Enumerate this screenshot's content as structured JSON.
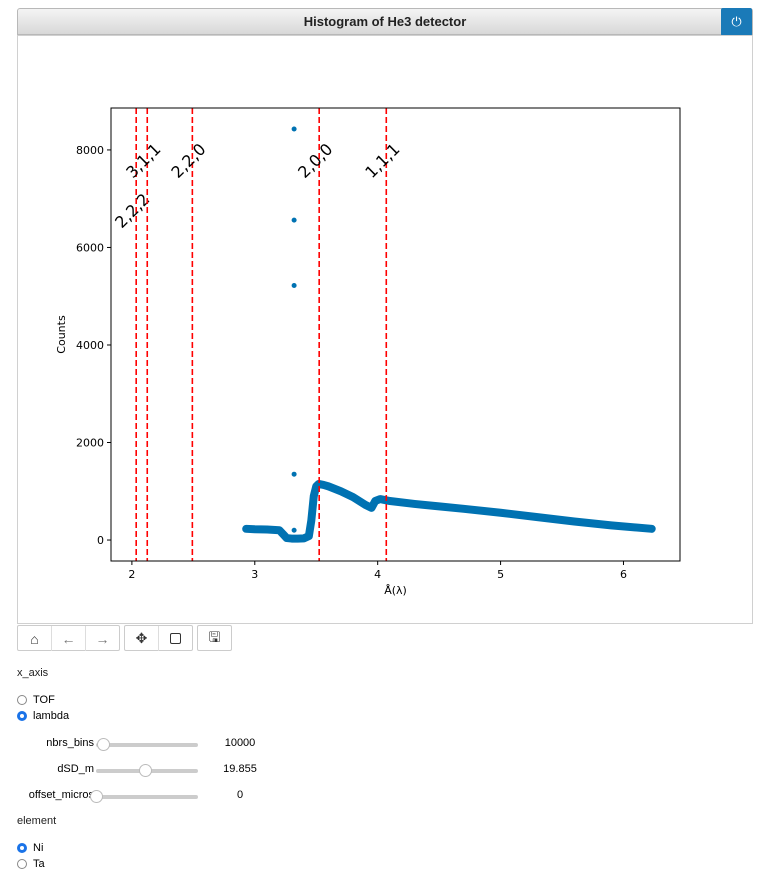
{
  "header": {
    "title": "Histogram of He3 detector",
    "power_icon": "power-icon",
    "power_color": "#1a7ab8"
  },
  "toolbar": {
    "buttons": [
      "home-icon",
      "arrow-left-icon",
      "arrow-right-icon",
      "move-icon",
      "square-icon",
      "save-icon"
    ]
  },
  "controls": {
    "x_axis": {
      "label": "x_axis",
      "options": [
        {
          "label": "TOF",
          "checked": false
        },
        {
          "label": "lambda",
          "checked": true
        }
      ]
    },
    "sliders": [
      {
        "label": "nbrs_bins",
        "value": "10000",
        "fraction": 0.07
      },
      {
        "label": "dSD_m",
        "value": "19.855",
        "fraction": 0.48
      },
      {
        "label": "offset_micros",
        "value": "0",
        "fraction": 0.0
      }
    ],
    "element": {
      "label": "element",
      "options": [
        {
          "label": "Ni",
          "checked": true
        },
        {
          "label": "Ta",
          "checked": false
        }
      ]
    }
  },
  "chart_data": {
    "type": "scatter",
    "title": "",
    "xlabel": "Å(λ)",
    "ylabel": "Counts",
    "xlim": [
      1.83,
      6.46
    ],
    "ylim": [
      -430,
      8860
    ],
    "xticks": [
      2,
      3,
      4,
      5,
      6
    ],
    "yticks": [
      0,
      2000,
      4000,
      6000,
      8000
    ],
    "grid": false,
    "series_color": "#0072b2",
    "line_color": "#ff0000",
    "series": [
      {
        "x": [
          2.93,
          3.0,
          3.1,
          3.2,
          3.23,
          3.26,
          3.3,
          3.35,
          3.4,
          3.44,
          3.46,
          3.48,
          3.5,
          3.52,
          3.56,
          3.6,
          3.7,
          3.8,
          3.9,
          3.95,
          3.98,
          4.02,
          4.1,
          4.3,
          4.5,
          4.7,
          5.0,
          5.3,
          5.6,
          5.9,
          6.23
        ],
        "y": [
          230,
          220,
          215,
          200,
          120,
          40,
          30,
          30,
          35,
          80,
          400,
          900,
          1100,
          1150,
          1130,
          1100,
          1000,
          880,
          720,
          660,
          800,
          840,
          800,
          740,
          690,
          640,
          560,
          470,
          380,
          300,
          230
        ]
      }
    ],
    "outliers": {
      "x": [
        3.32,
        3.32,
        3.32,
        3.32,
        3.32
      ],
      "y": [
        8430,
        6560,
        5220,
        1350,
        200
      ]
    },
    "vlines": [
      {
        "x": 2.035,
        "label": "2,2,2"
      },
      {
        "x": 2.125,
        "label": "3,1,1"
      },
      {
        "x": 2.492,
        "label": "2,2,0"
      },
      {
        "x": 3.524,
        "label": "2,0,0"
      },
      {
        "x": 4.07,
        "label": "1,1,1"
      }
    ]
  }
}
